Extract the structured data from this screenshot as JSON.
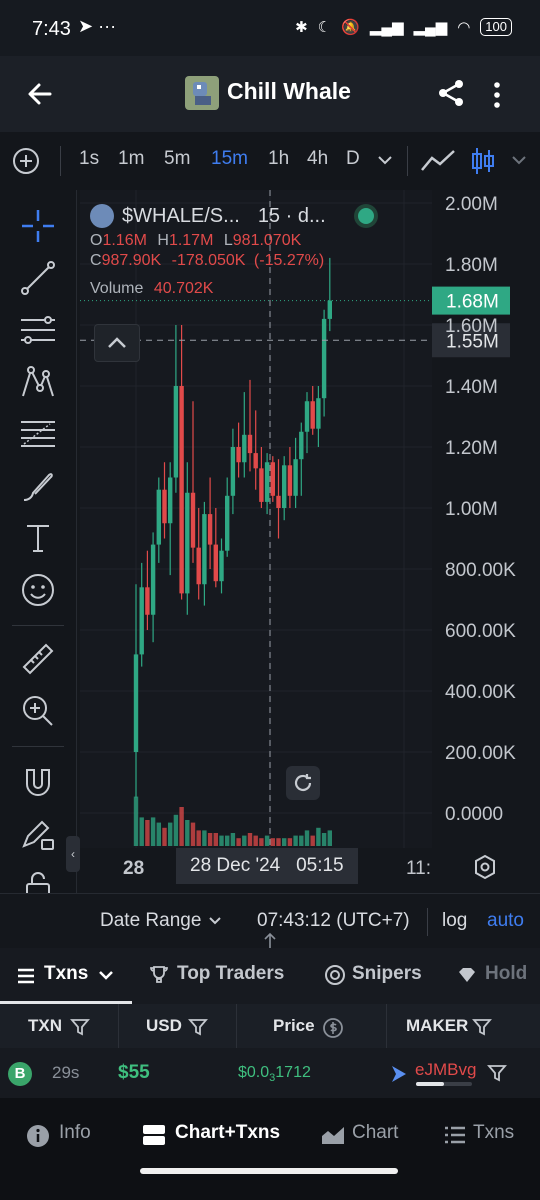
{
  "status_bar": {
    "time": "7:43",
    "icons_left": "➤ ···",
    "battery": "100"
  },
  "app_bar": {
    "title": "Chill Whale"
  },
  "intervals": [
    "1s",
    "1m",
    "5m",
    "15m",
    "1h",
    "4h",
    "D"
  ],
  "active_interval": "15m",
  "chart_header": {
    "symbol": "$WHALE/S...",
    "interval_label": "15 · d...",
    "o_label": "O",
    "o_value": "1.16M",
    "h_label": "H",
    "h_value": "1.17M",
    "l_label": "L",
    "l_value": "981.070K",
    "c_label": "C",
    "c_value": "987.90K",
    "change": "-178.050K",
    "change_pct": "(-15.27%)",
    "volume_label": "Volume",
    "volume_value": "40.702K"
  },
  "price_tags": {
    "last": "1.68M",
    "crosshair": "1.55M"
  },
  "x_axis": {
    "left": "28",
    "crosshair": "28 Dec '24   05:15",
    "right": "11:"
  },
  "bottom_controls": {
    "date_range": "Date Range",
    "clock": "07:43:12 (UTC+7)",
    "log": "log",
    "auto": "auto"
  },
  "tabs": {
    "txns": "Txns",
    "top_traders": "Top Traders",
    "snipers": "Snipers",
    "holders": "Hold"
  },
  "table_headers": {
    "txn": "TXN",
    "usd": "USD",
    "price": "Price",
    "maker": "MAKER"
  },
  "txn_row": {
    "type": "B",
    "age": "29s",
    "usd": "$55",
    "price_prefix": "$0.0",
    "price_sub": "3",
    "price_suffix": "1712",
    "maker": "eJMBvg"
  },
  "nav": {
    "info": "Info",
    "chart_txns": "Chart+Txns",
    "chart": "Chart",
    "txns": "Txns"
  },
  "colors": {
    "up": "#2fa884",
    "down": "#e14a4a",
    "accent": "#3f7df0"
  },
  "chart_data": {
    "type": "candlestick",
    "title": "$WHALE/S...",
    "y_ticks": [
      "2.00M",
      "1.80M",
      "1.60M",
      "1.40M",
      "1.20M",
      "1.00M",
      "800.00K",
      "600.00K",
      "400.00K",
      "200.00K",
      "0.0000"
    ],
    "y_tick_values": [
      2000000,
      1800000,
      1600000,
      1400000,
      1200000,
      1000000,
      800000,
      600000,
      400000,
      200000,
      0
    ],
    "ylim": [
      0,
      2000000
    ],
    "candles": [
      {
        "o": 200000,
        "h": 750000,
        "l": 50000,
        "c": 520000
      },
      {
        "o": 520000,
        "h": 820000,
        "l": 480000,
        "c": 740000
      },
      {
        "o": 740000,
        "h": 860000,
        "l": 600000,
        "c": 650000
      },
      {
        "o": 650000,
        "h": 920000,
        "l": 560000,
        "c": 880000
      },
      {
        "o": 880000,
        "h": 1100000,
        "l": 820000,
        "c": 1060000
      },
      {
        "o": 1060000,
        "h": 1150000,
        "l": 900000,
        "c": 950000
      },
      {
        "o": 950000,
        "h": 1150000,
        "l": 780000,
        "c": 1100000
      },
      {
        "o": 1100000,
        "h": 1600000,
        "l": 1050000,
        "c": 1400000
      },
      {
        "o": 1400000,
        "h": 1600000,
        "l": 700000,
        "c": 720000
      },
      {
        "o": 720000,
        "h": 1150000,
        "l": 650000,
        "c": 1050000
      },
      {
        "o": 1050000,
        "h": 1350000,
        "l": 820000,
        "c": 870000
      },
      {
        "o": 870000,
        "h": 1000000,
        "l": 700000,
        "c": 750000
      },
      {
        "o": 750000,
        "h": 1020000,
        "l": 680000,
        "c": 980000
      },
      {
        "o": 980000,
        "h": 1100000,
        "l": 800000,
        "c": 880000
      },
      {
        "o": 880000,
        "h": 1000000,
        "l": 740000,
        "c": 760000
      },
      {
        "o": 760000,
        "h": 900000,
        "l": 720000,
        "c": 860000
      },
      {
        "o": 860000,
        "h": 1100000,
        "l": 840000,
        "c": 1040000
      },
      {
        "o": 1040000,
        "h": 1260000,
        "l": 980000,
        "c": 1200000
      },
      {
        "o": 1200000,
        "h": 1280000,
        "l": 1100000,
        "c": 1150000
      },
      {
        "o": 1150000,
        "h": 1380000,
        "l": 1100000,
        "c": 1240000
      },
      {
        "o": 1240000,
        "h": 1420000,
        "l": 1120000,
        "c": 1180000
      },
      {
        "o": 1180000,
        "h": 1320000,
        "l": 1060000,
        "c": 1130000
      },
      {
        "o": 1130000,
        "h": 1200000,
        "l": 1000000,
        "c": 1020000
      },
      {
        "o": 1020000,
        "h": 1180000,
        "l": 980000,
        "c": 1150000
      },
      {
        "o": 1150000,
        "h": 1170000,
        "l": 1020000,
        "c": 1040000
      },
      {
        "o": 1040000,
        "h": 1160000,
        "l": 900000,
        "c": 1000000
      },
      {
        "o": 1000000,
        "h": 1170000,
        "l": 960000,
        "c": 1140000
      },
      {
        "o": 1140000,
        "h": 1200000,
        "l": 1000000,
        "c": 1040000
      },
      {
        "o": 1040000,
        "h": 1230000,
        "l": 1000000,
        "c": 1160000
      },
      {
        "o": 1160000,
        "h": 1280000,
        "l": 1040000,
        "c": 1250000
      },
      {
        "o": 1250000,
        "h": 1380000,
        "l": 1180000,
        "c": 1350000
      },
      {
        "o": 1350000,
        "h": 1400000,
        "l": 1240000,
        "c": 1260000
      },
      {
        "o": 1260000,
        "h": 1400000,
        "l": 1200000,
        "c": 1360000
      },
      {
        "o": 1360000,
        "h": 1650000,
        "l": 1300000,
        "c": 1620000
      },
      {
        "o": 1620000,
        "h": 1820000,
        "l": 1580000,
        "c": 1680000
      }
    ],
    "volume": [
      0.95,
      0.55,
      0.5,
      0.55,
      0.45,
      0.35,
      0.45,
      0.6,
      0.75,
      0.5,
      0.45,
      0.3,
      0.3,
      0.25,
      0.25,
      0.2,
      0.2,
      0.25,
      0.15,
      0.2,
      0.25,
      0.2,
      0.15,
      0.2,
      0.15,
      0.15,
      0.15,
      0.15,
      0.2,
      0.2,
      0.3,
      0.2,
      0.35,
      0.25,
      0.3
    ],
    "last_price": 1680000,
    "crosshair_price": 1550000
  }
}
